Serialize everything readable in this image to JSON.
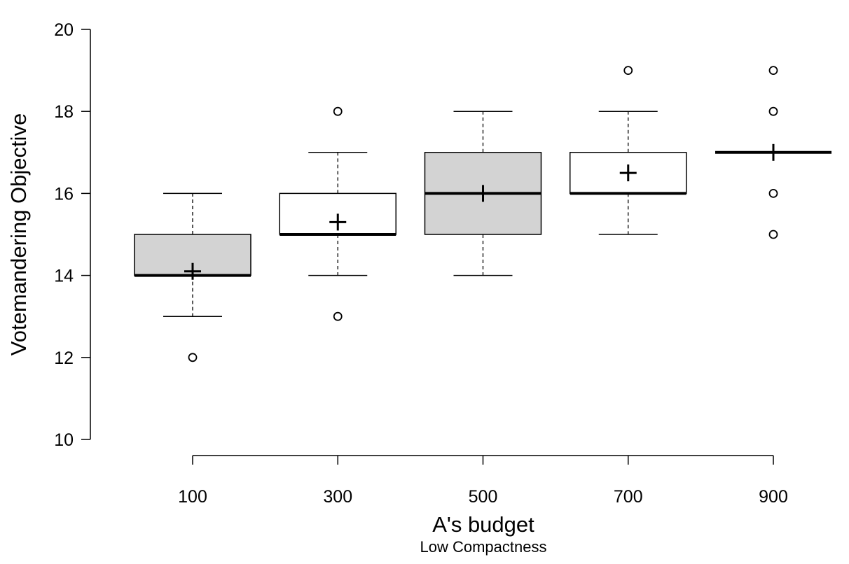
{
  "chart_data": {
    "type": "boxplot",
    "xlabel": "A's budget",
    "ylabel": "Votemandering Objective",
    "subtitle": "Low Compactness",
    "ylim": [
      10,
      20
    ],
    "y_ticks": [
      10,
      12,
      14,
      16,
      18,
      20
    ],
    "categories": [
      "100",
      "300",
      "500",
      "700",
      "900"
    ],
    "grid": false,
    "boxes": [
      {
        "category": "100",
        "whisker_low": 13,
        "q1": 14,
        "median": 14,
        "q3": 15,
        "whisker_high": 16,
        "mean": 14.1,
        "outliers": [
          12
        ],
        "fill": "#d3d3d3"
      },
      {
        "category": "300",
        "whisker_low": 14,
        "q1": 15,
        "median": 15,
        "q3": 16,
        "whisker_high": 17,
        "mean": 15.3,
        "outliers": [
          18,
          13
        ],
        "fill": "#ffffff"
      },
      {
        "category": "500",
        "whisker_low": 14,
        "q1": 15,
        "median": 16,
        "q3": 17,
        "whisker_high": 18,
        "mean": 16.0,
        "outliers": [],
        "fill": "#d3d3d3"
      },
      {
        "category": "700",
        "whisker_low": 15,
        "q1": 16,
        "median": 16,
        "q3": 17,
        "whisker_high": 18,
        "mean": 16.5,
        "outliers": [
          19
        ],
        "fill": "#ffffff"
      },
      {
        "category": "900",
        "whisker_low": 17,
        "q1": 17,
        "median": 17,
        "q3": 17,
        "whisker_high": 17,
        "mean": 17.0,
        "outliers": [
          19,
          18,
          16,
          15
        ],
        "fill": "#d3d3d3"
      }
    ]
  }
}
